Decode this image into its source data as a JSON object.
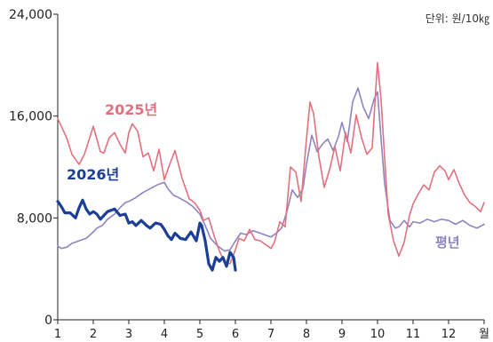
{
  "chart_data": {
    "type": "line",
    "unit": "단위: 원/10㎏",
    "ylim": [
      0,
      24000
    ],
    "yticks": [
      {
        "value": 0,
        "label": "0"
      },
      {
        "value": 8000,
        "label": "8,000"
      },
      {
        "value": 16000,
        "label": "16,000"
      },
      {
        "value": 24000,
        "label": "24,000"
      }
    ],
    "xlim": [
      1,
      13.05
    ],
    "xticks": [
      {
        "value": 1,
        "label": "1"
      },
      {
        "value": 2,
        "label": "2"
      },
      {
        "value": 3,
        "label": "3"
      },
      {
        "value": 4,
        "label": "4"
      },
      {
        "value": 5,
        "label": "5"
      },
      {
        "value": 6,
        "label": "6"
      },
      {
        "value": 7,
        "label": "7"
      },
      {
        "value": 8,
        "label": "8"
      },
      {
        "value": 9,
        "label": "9"
      },
      {
        "value": 10,
        "label": "10"
      },
      {
        "value": 11,
        "label": "11"
      },
      {
        "value": 12,
        "label": "12"
      },
      {
        "value": 13,
        "label": "월"
      }
    ],
    "series": [
      {
        "name": "평년",
        "color": "#8e84c2",
        "x": [
          1.0,
          1.1,
          1.25,
          1.4,
          1.6,
          1.8,
          2.0,
          2.1,
          2.25,
          2.4,
          2.6,
          2.75,
          2.9,
          3.0,
          3.2,
          3.4,
          3.6,
          3.8,
          4.0,
          4.1,
          4.25,
          4.4,
          4.6,
          4.8,
          5.0,
          5.15,
          5.3,
          5.5,
          5.7,
          5.85,
          6.0,
          6.15,
          6.3,
          6.5,
          6.7,
          6.9,
          7.0,
          7.15,
          7.3,
          7.45,
          7.6,
          7.75,
          7.9,
          8.0,
          8.15,
          8.3,
          8.45,
          8.6,
          8.75,
          8.9,
          9.0,
          9.15,
          9.3,
          9.45,
          9.6,
          9.75,
          9.9,
          10.0,
          10.1,
          10.2,
          10.35,
          10.5,
          10.6,
          10.75,
          10.9,
          11.0,
          11.2,
          11.4,
          11.6,
          11.8,
          12.0,
          12.2,
          12.4,
          12.6,
          12.8,
          13.0
        ],
        "values": [
          5800,
          5600,
          5700,
          6000,
          6200,
          6400,
          6900,
          7200,
          7400,
          7900,
          8300,
          8800,
          9200,
          9300,
          9600,
          10000,
          10300,
          10600,
          10800,
          10300,
          9800,
          9600,
          9300,
          8900,
          8300,
          7400,
          6400,
          5800,
          5400,
          5500,
          6200,
          6800,
          6700,
          7000,
          6800,
          6600,
          6500,
          6800,
          7200,
          8500,
          10200,
          9600,
          10300,
          12200,
          14500,
          13200,
          13800,
          14200,
          13300,
          14400,
          15500,
          14000,
          17100,
          18200,
          16700,
          15800,
          17300,
          17900,
          14200,
          10700,
          7800,
          7200,
          7300,
          7800,
          7300,
          7700,
          7600,
          7900,
          7700,
          7900,
          7800,
          7500,
          7800,
          7400,
          7200,
          7500
        ]
      },
      {
        "name": "2025년",
        "color": "#e2707f",
        "x": [
          1.0,
          1.1,
          1.25,
          1.4,
          1.6,
          1.75,
          1.9,
          2.0,
          2.1,
          2.2,
          2.3,
          2.45,
          2.6,
          2.75,
          2.9,
          3.0,
          3.1,
          3.25,
          3.4,
          3.55,
          3.7,
          3.85,
          4.0,
          4.15,
          4.3,
          4.5,
          4.7,
          4.85,
          5.0,
          5.1,
          5.25,
          5.4,
          5.55,
          5.7,
          5.85,
          6.0,
          6.1,
          6.25,
          6.4,
          6.55,
          6.7,
          6.85,
          7.0,
          7.1,
          7.25,
          7.4,
          7.55,
          7.7,
          7.85,
          8.0,
          8.1,
          8.2,
          8.35,
          8.5,
          8.65,
          8.8,
          8.95,
          9.1,
          9.25,
          9.4,
          9.55,
          9.7,
          9.85,
          9.95,
          10.0,
          10.1,
          10.2,
          10.3,
          10.45,
          10.6,
          10.75,
          10.9,
          11.0,
          11.15,
          11.3,
          11.45,
          11.6,
          11.75,
          11.9,
          12.0,
          12.15,
          12.3,
          12.45,
          12.6,
          12.75,
          12.9,
          13.0
        ],
        "values": [
          15800,
          15200,
          14300,
          13000,
          12200,
          13000,
          14300,
          15200,
          14200,
          13200,
          13100,
          14300,
          14700,
          13800,
          13100,
          14700,
          15400,
          14800,
          12800,
          13100,
          11700,
          13400,
          11000,
          12200,
          13300,
          11100,
          9500,
          9200,
          8600,
          7800,
          8000,
          6600,
          5400,
          4500,
          4400,
          5500,
          6400,
          6200,
          7100,
          6300,
          6200,
          5900,
          5600,
          6100,
          7700,
          7300,
          12000,
          11600,
          9300,
          14200,
          17100,
          16200,
          12800,
          10400,
          11800,
          13600,
          11700,
          14700,
          13100,
          16100,
          14300,
          13000,
          13500,
          18100,
          20200,
          17300,
          12700,
          8300,
          6200,
          5000,
          6100,
          8200,
          9100,
          9900,
          10600,
          10200,
          11600,
          12100,
          11700,
          11000,
          11800,
          10700,
          9800,
          9200,
          8900,
          8500,
          9200
        ]
      },
      {
        "name": "2026년",
        "color": "#1b3f96",
        "x": [
          1.0,
          1.1,
          1.2,
          1.35,
          1.5,
          1.6,
          1.7,
          1.8,
          1.9,
          2.0,
          2.1,
          2.2,
          2.3,
          2.4,
          2.5,
          2.6,
          2.75,
          2.9,
          3.0,
          3.1,
          3.2,
          3.35,
          3.5,
          3.6,
          3.75,
          3.9,
          4.0,
          4.1,
          4.2,
          4.3,
          4.45,
          4.6,
          4.75,
          4.9,
          5.0,
          5.05,
          5.15,
          5.25,
          5.35,
          5.45,
          5.55,
          5.65,
          5.75,
          5.85,
          5.95,
          6.0
        ],
        "values": [
          9300,
          8900,
          8400,
          8400,
          8000,
          8800,
          9400,
          8700,
          8300,
          8500,
          8300,
          7900,
          8200,
          8500,
          8600,
          8700,
          8200,
          8300,
          7600,
          7700,
          7400,
          7800,
          7400,
          7200,
          7600,
          7500,
          7100,
          6600,
          6300,
          6800,
          6400,
          6300,
          6900,
          6200,
          7600,
          7400,
          6200,
          4400,
          3900,
          4900,
          4600,
          4900,
          4200,
          5300,
          4900,
          3900
        ]
      }
    ],
    "labels": {
      "s2025": "2025년",
      "s2026": "2026년",
      "avg": "평년"
    }
  }
}
